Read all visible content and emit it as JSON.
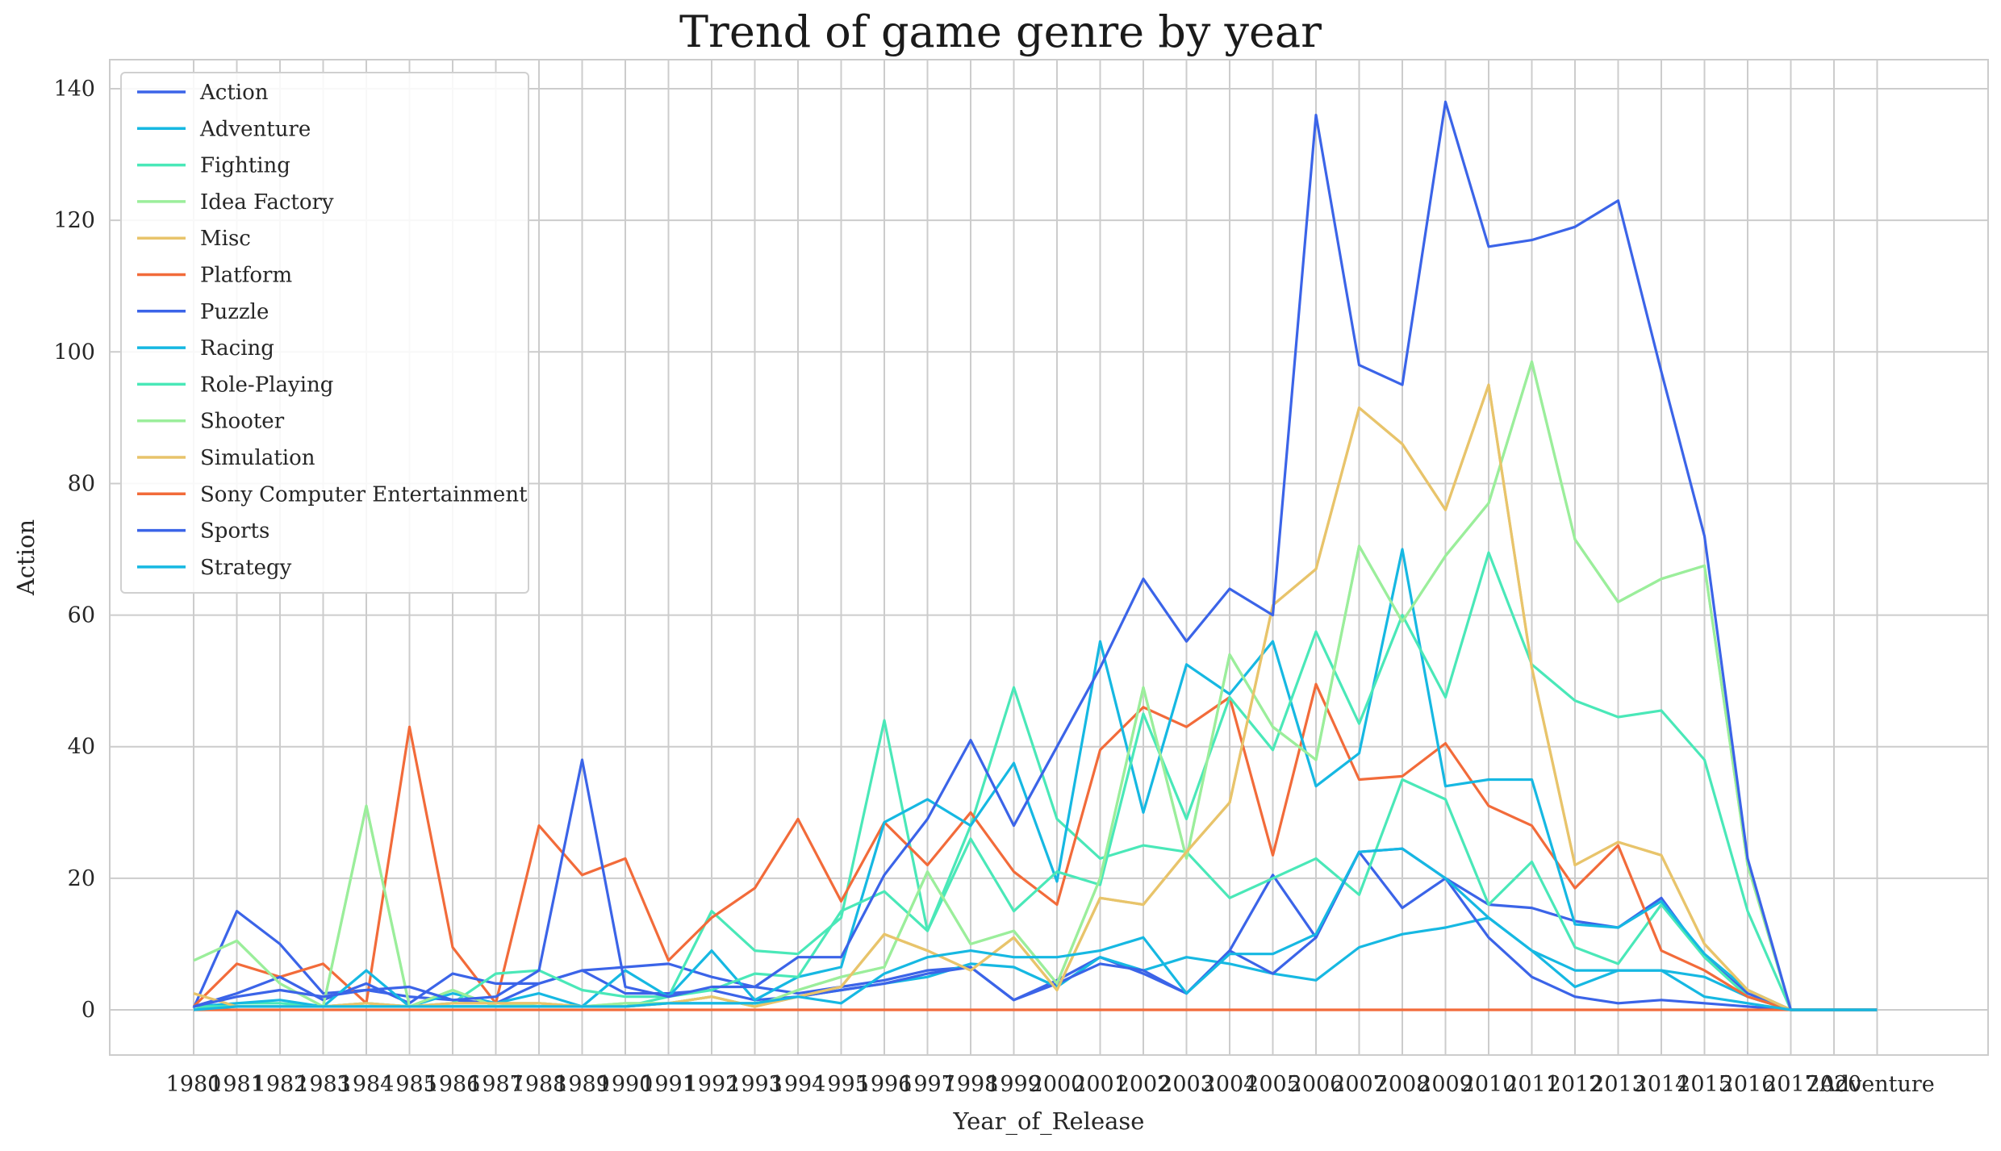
{
  "chart_data": {
    "type": "line",
    "title": "Trend of game genre by year",
    "xlabel": "Year_of_Release",
    "ylabel": "Action",
    "ylim": [
      -7,
      145
    ],
    "yticks": [
      0,
      20,
      40,
      60,
      80,
      100,
      120,
      140
    ],
    "grid": true,
    "legend_position": "top-left",
    "categories": [
      "1980",
      "1981",
      "1982",
      "1983",
      "1984",
      "1985",
      "1986",
      "1987",
      "1988",
      "1989",
      "1990",
      "1991",
      "1992",
      "1993",
      "1994",
      "1995",
      "1996",
      "1997",
      "1998",
      "1999",
      "2000",
      "2001",
      "2002",
      "2003",
      "2004",
      "2005",
      "2006",
      "2007",
      "2008",
      "2009",
      "2010",
      "2011",
      "2012",
      "2013",
      "2014",
      "2015",
      "2016",
      "2017",
      "2020",
      "Adventure"
    ],
    "series": [
      {
        "name": "Action",
        "color": "#3b64e8",
        "values": [
          0.3,
          15,
          10,
          2.5,
          3,
          2,
          1.5,
          1,
          4,
          6,
          6.5,
          7,
          5,
          3.5,
          2.5,
          3.5,
          4.5,
          6,
          6.5,
          1.5,
          4.5,
          8,
          5.5,
          2.5,
          9,
          20.5,
          11,
          24,
          15.5,
          20,
          16,
          15.5,
          13.5,
          12.5,
          17,
          8,
          2.5,
          0,
          0,
          0
        ]
      },
      {
        "name": "Adventure",
        "color": "#16b8e2",
        "values": [
          0,
          0.5,
          0.5,
          0.5,
          0.5,
          0.5,
          0.5,
          0.5,
          0.5,
          0.5,
          0.5,
          1,
          1,
          1,
          2,
          3,
          4,
          5,
          7,
          6.5,
          3.5,
          8,
          6,
          8,
          7,
          5.5,
          4.5,
          9.5,
          11.5,
          12.5,
          14,
          9,
          3.5,
          6,
          6,
          5,
          2,
          0,
          0,
          0
        ]
      },
      {
        "name": "Fighting",
        "color": "#4ae8b8",
        "values": [
          0,
          1,
          1,
          0.5,
          0.5,
          0.5,
          0.5,
          0.5,
          0.5,
          0.5,
          0.5,
          2,
          15,
          9,
          8.5,
          14,
          44,
          12,
          28,
          49,
          29,
          23,
          25,
          24,
          17,
          20,
          23,
          17.5,
          35,
          32,
          16,
          22.5,
          9.5,
          7,
          16,
          8,
          2,
          0,
          0,
          0
        ]
      },
      {
        "name": "Idea Factory",
        "color": "#9bee9b",
        "values": [
          7.5,
          10.5,
          4,
          0.5,
          31,
          0.5,
          3,
          0.5,
          1,
          0.5,
          1,
          1,
          2,
          0.5,
          3,
          5,
          6.5,
          21,
          10,
          12,
          4,
          20,
          49,
          23,
          54,
          43,
          38,
          70.5,
          59,
          69,
          77,
          98.5,
          71.5,
          62,
          65.5,
          67.5,
          22,
          0,
          0,
          0
        ]
      },
      {
        "name": "Misc",
        "color": "#e8c46b",
        "values": [
          2.5,
          0.5,
          0.5,
          0.5,
          1,
          0.5,
          1,
          1,
          1,
          0.5,
          0.5,
          1,
          2,
          0.5,
          2,
          3.5,
          11.5,
          9,
          6,
          11,
          3,
          17,
          16,
          24,
          31.5,
          61.5,
          67,
          91.5,
          86,
          76,
          95,
          52,
          22,
          25.5,
          23.5,
          10,
          3,
          0,
          0,
          0
        ]
      },
      {
        "name": "Platform",
        "color": "#f26b3a",
        "values": [
          0.5,
          7,
          5,
          7,
          1,
          43,
          9.5,
          1,
          28,
          20.5,
          23,
          7.5,
          14,
          18.5,
          29,
          16.5,
          28.5,
          22,
          30,
          21,
          16,
          39.5,
          46,
          43,
          47.5,
          23.5,
          49.5,
          35,
          35.5,
          40.5,
          31,
          28,
          18.5,
          25,
          9,
          6,
          2,
          0,
          0,
          0
        ]
      },
      {
        "name": "Puzzle",
        "color": "#3b64e8",
        "values": [
          0.5,
          2.5,
          5,
          1.5,
          4,
          1,
          5.5,
          4,
          4,
          6,
          2.5,
          2.5,
          3,
          1.5,
          2,
          3,
          4,
          5.5,
          6.5,
          1.5,
          4,
          7,
          6,
          2.5,
          9,
          5.5,
          11,
          24,
          24.5,
          20,
          11,
          5,
          2,
          1,
          1.5,
          1,
          0.5,
          0,
          0,
          0
        ]
      },
      {
        "name": "Racing",
        "color": "#16b8e2",
        "values": [
          0.5,
          1,
          1.5,
          0.5,
          6,
          0.5,
          2.5,
          1,
          2.5,
          0.5,
          6,
          2,
          9,
          1.5,
          5,
          6.5,
          28.5,
          32,
          28,
          37.5,
          19.5,
          56,
          30,
          52.5,
          48,
          56,
          34,
          39,
          70,
          34,
          35,
          35,
          13,
          12.5,
          16.5,
          8.5,
          3,
          0,
          0,
          0
        ]
      },
      {
        "name": "Role-Playing",
        "color": "#4ae8b8",
        "values": [
          0.5,
          0.5,
          0.5,
          0.5,
          1,
          0.5,
          1,
          5.5,
          6,
          3,
          2,
          2,
          3,
          5.5,
          5,
          15,
          18,
          12,
          26,
          15,
          21,
          19,
          45,
          29,
          47.5,
          39.5,
          57.5,
          43.5,
          60,
          47.5,
          69.5,
          52.5,
          47,
          44.5,
          45.5,
          38,
          15,
          0,
          0,
          0
        ]
      },
      {
        "name": "Shooter",
        "color": "#9bee9b",
        "values": [
          7.5,
          10.5,
          4,
          0.5,
          31,
          0.5,
          3,
          0.5,
          1,
          0.5,
          1,
          1,
          2,
          0.5,
          3,
          5,
          6.5,
          21,
          10,
          12,
          4,
          20,
          49,
          23,
          54,
          43,
          38,
          70.5,
          59,
          69,
          77,
          98.5,
          71.5,
          62,
          65.5,
          67.5,
          22,
          0,
          0,
          0
        ]
      },
      {
        "name": "Simulation",
        "color": "#e8c46b",
        "values": [
          2.5,
          0.5,
          0.5,
          0.5,
          1,
          0.5,
          1,
          1,
          1,
          0.5,
          0.5,
          1,
          2,
          0.5,
          2,
          3.5,
          11.5,
          9,
          6,
          11,
          3,
          17,
          16,
          24,
          31.5,
          61.5,
          67,
          91.5,
          86,
          76,
          95,
          52,
          22,
          25.5,
          23.5,
          10,
          3,
          0,
          0,
          0
        ]
      },
      {
        "name": "Sony Computer Entertainment",
        "color": "#f26b3a",
        "values": [
          0,
          0,
          0,
          0,
          0,
          0,
          0,
          0,
          0,
          0,
          0,
          0,
          0,
          0,
          0,
          0,
          0,
          0,
          0,
          0,
          0,
          0,
          0,
          0,
          0,
          0,
          0,
          0,
          0,
          0,
          0,
          0,
          0,
          0,
          0,
          0,
          0,
          0,
          0,
          0
        ]
      },
      {
        "name": "Sports",
        "color": "#3b64e8",
        "values": [
          0.5,
          2,
          3,
          2,
          3,
          3.5,
          1.5,
          2,
          6,
          38,
          3.5,
          2,
          3.5,
          3.5,
          8,
          8,
          20.5,
          29,
          41,
          28,
          40,
          52,
          65.5,
          56,
          64,
          60,
          136,
          98,
          95,
          138,
          116,
          117,
          119,
          123,
          97,
          72,
          23,
          0,
          0,
          0
        ]
      },
      {
        "name": "Strategy",
        "color": "#16b8e2",
        "values": [
          0,
          0.5,
          0.5,
          0.5,
          0.5,
          0.5,
          0.5,
          0.5,
          0.5,
          0.5,
          0.5,
          1,
          1,
          1,
          2,
          1,
          5.5,
          8,
          9,
          8,
          8,
          9,
          11,
          2.5,
          8.5,
          8.5,
          11.5,
          24,
          24.5,
          20,
          14,
          9,
          6,
          6,
          6,
          2,
          1,
          0,
          0,
          0
        ]
      }
    ]
  }
}
